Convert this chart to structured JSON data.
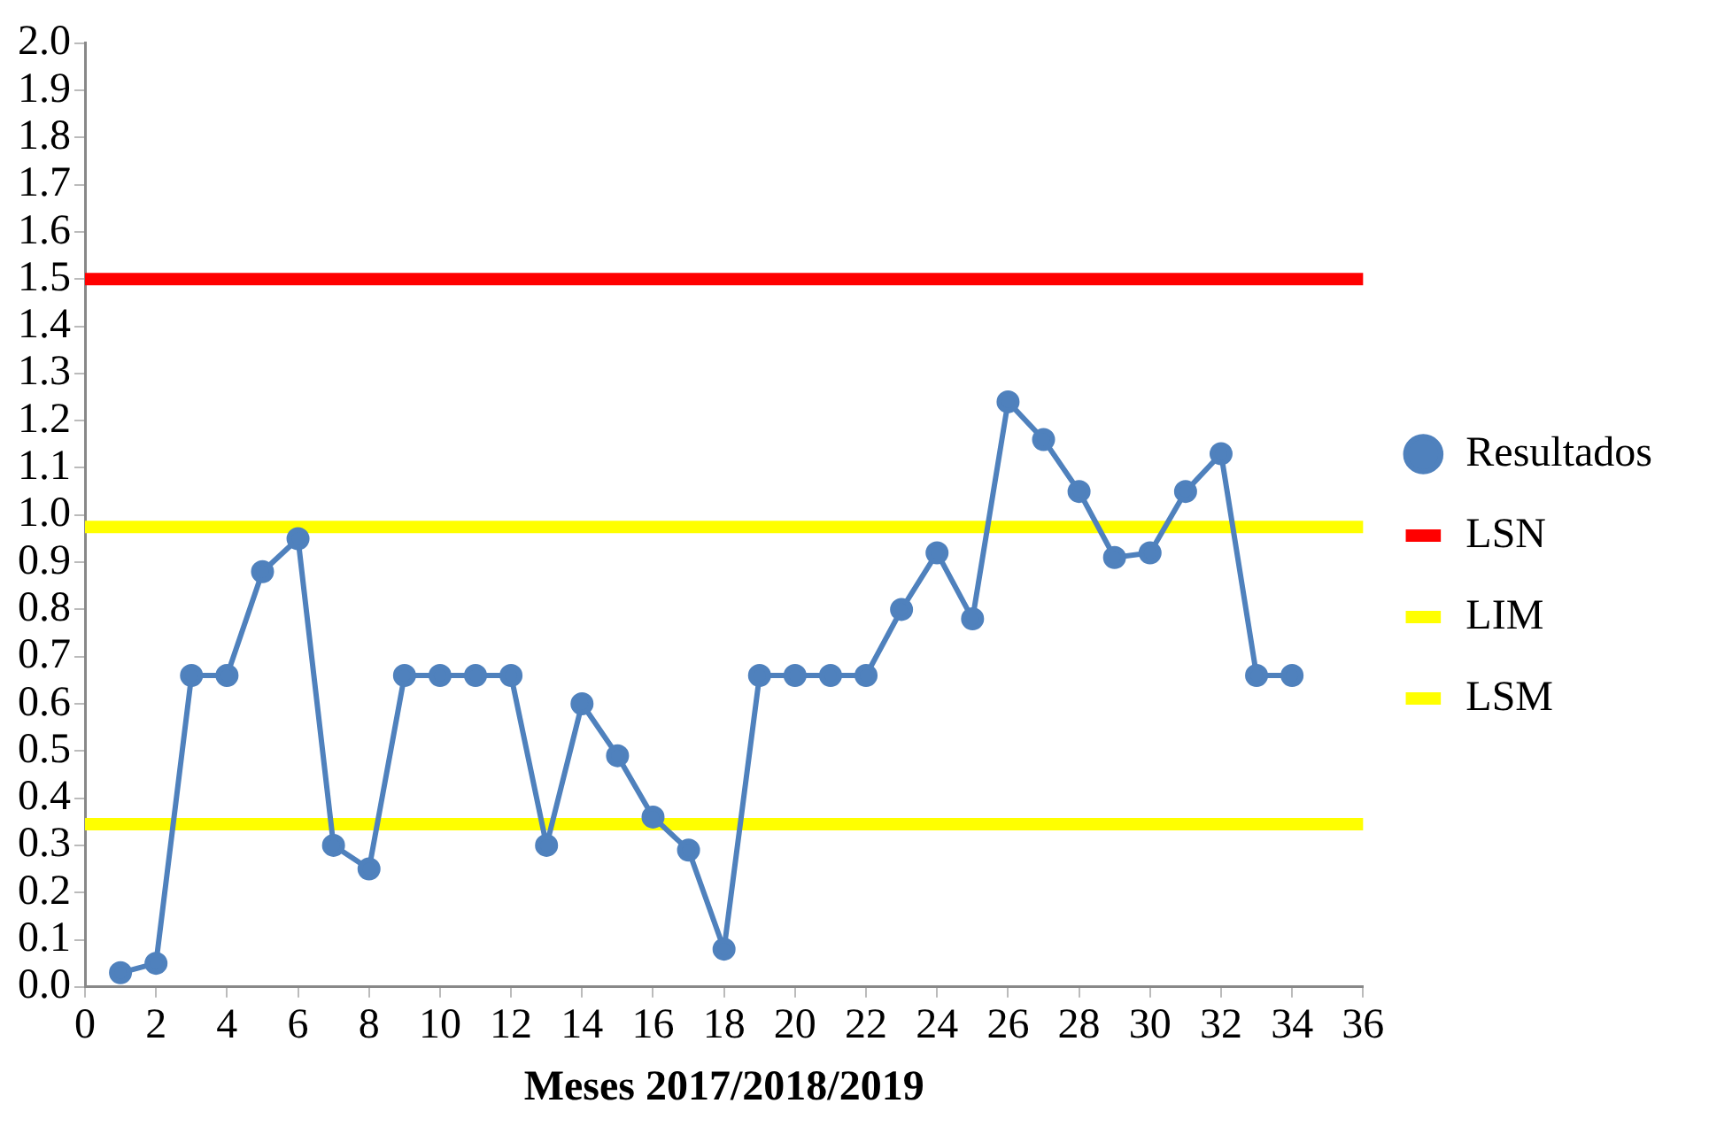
{
  "chart_data": {
    "type": "line",
    "xlabel": "Meses 2017/2018/2019",
    "x": [
      1,
      2,
      3,
      4,
      5,
      6,
      7,
      8,
      9,
      10,
      11,
      12,
      13,
      14,
      15,
      16,
      17,
      18,
      19,
      20,
      21,
      22,
      23,
      24,
      25,
      26,
      27,
      28,
      29,
      30,
      31,
      32,
      33,
      34
    ],
    "series": [
      {
        "name": "Resultados",
        "color": "#4f81bd",
        "marker": "circle",
        "values": [
          0.03,
          0.05,
          0.66,
          0.66,
          0.88,
          0.95,
          0.3,
          0.25,
          0.66,
          0.66,
          0.66,
          0.66,
          0.3,
          0.6,
          0.49,
          0.36,
          0.29,
          0.08,
          0.66,
          0.66,
          0.66,
          0.66,
          0.8,
          0.92,
          0.78,
          1.24,
          1.16,
          1.05,
          0.91,
          0.92,
          1.05,
          1.13,
          0.66,
          0.66
        ]
      }
    ],
    "ref_lines": [
      {
        "axis": "y",
        "value": 1.5,
        "label": "LSN",
        "color": "#ff0000"
      },
      {
        "axis": "y",
        "value": 0.345,
        "label": "LIM",
        "color": "#ffff00"
      },
      {
        "axis": "y",
        "value": 0.975,
        "label": "LSM",
        "color": "#ffff00"
      }
    ],
    "xlim": [
      0,
      36
    ],
    "xticks": [
      0,
      2,
      4,
      6,
      8,
      10,
      12,
      14,
      16,
      18,
      20,
      22,
      24,
      26,
      28,
      30,
      32,
      34,
      36
    ],
    "ylim": [
      0,
      2
    ],
    "yticks": [
      {
        "value": 0,
        "label": "0.0"
      },
      {
        "value": 0.1,
        "label": "0.1"
      },
      {
        "value": 0.2,
        "label": "0.2"
      },
      {
        "value": 0.3,
        "label": "0.3"
      },
      {
        "value": 0.4,
        "label": "0.4"
      },
      {
        "value": 0.5,
        "label": "0.5"
      },
      {
        "value": 0.6,
        "label": "0.6"
      },
      {
        "value": 0.7,
        "label": "0.7"
      },
      {
        "value": 0.8,
        "label": "0.8"
      },
      {
        "value": 0.9,
        "label": "0.9"
      },
      {
        "value": 1,
        "label": "1.0"
      },
      {
        "value": 1.1,
        "label": "1.1"
      },
      {
        "value": 1.2,
        "label": "1.2"
      },
      {
        "value": 1.3,
        "label": "1.3"
      },
      {
        "value": 1.4,
        "label": "1.4"
      },
      {
        "value": 1.5,
        "label": "1.5"
      },
      {
        "value": 1.6,
        "label": "1.6"
      },
      {
        "value": 1.7,
        "label": "1.7"
      },
      {
        "value": 1.8,
        "label": "1.8"
      },
      {
        "value": 1.9,
        "label": "1.9"
      },
      {
        "value": 2,
        "label": "2.0"
      }
    ],
    "grid": false,
    "legend": "right"
  }
}
